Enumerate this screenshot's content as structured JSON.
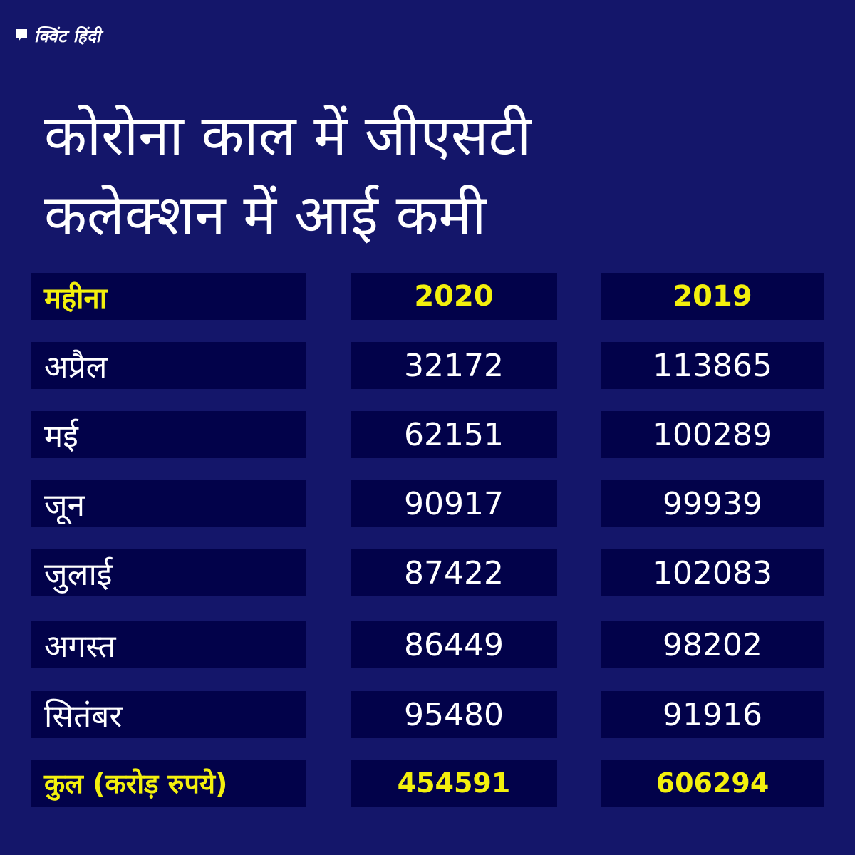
{
  "brand": {
    "logo_text": "क्विंट हिंदी",
    "logo_icon": "quint-speech-bubble-icon"
  },
  "title": {
    "line1": "कोरोना काल में जीएसटी",
    "line2": "कलेक्शन में आई कमी"
  },
  "table": {
    "headers": {
      "month": "महीना",
      "year_2020": "2020",
      "year_2019": "2019"
    },
    "rows": [
      {
        "month": "अप्रैल",
        "v2020": "32172",
        "v2019": "113865"
      },
      {
        "month": "मई",
        "v2020": "62151",
        "v2019": "100289"
      },
      {
        "month": "जून",
        "v2020": "90917",
        "v2019": "99939"
      },
      {
        "month": "जुलाई",
        "v2020": "87422",
        "v2019": "102083"
      },
      {
        "month": "अगस्त",
        "v2020": "86449",
        "v2019": "98202"
      },
      {
        "month": "सितंबर",
        "v2020": "95480",
        "v2019": "91916"
      }
    ],
    "total": {
      "label": "कुल (करोड़ रुपये)",
      "v2020": "454591",
      "v2019": "606294"
    }
  },
  "colors": {
    "background": "#14166a",
    "cell": "#02024a",
    "highlight": "#f3f00d",
    "text": "#ffffff"
  }
}
